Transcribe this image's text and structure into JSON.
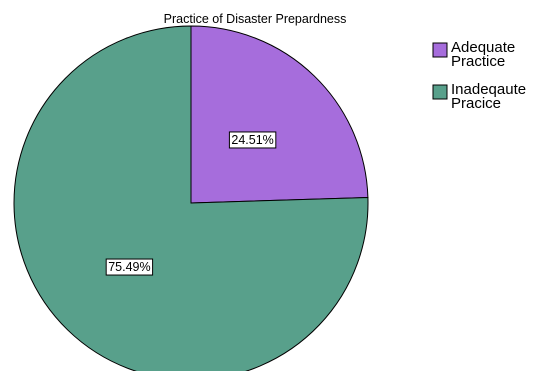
{
  "chart_data": {
    "type": "pie",
    "title": "Practice of Disaster Prepardness",
    "start_angle_deg": 0,
    "direction": "clockwise",
    "legend_position": "top-right",
    "slices": [
      {
        "label_lines": [
          "Adequate",
          "Practice"
        ],
        "value": 24.51,
        "data_label": "24.51%",
        "color": "#a66ddc"
      },
      {
        "label_lines": [
          "Inadeqaute",
          "Pracice"
        ],
        "value": 75.49,
        "data_label": "75.49%",
        "color": "#58a08b"
      }
    ]
  }
}
